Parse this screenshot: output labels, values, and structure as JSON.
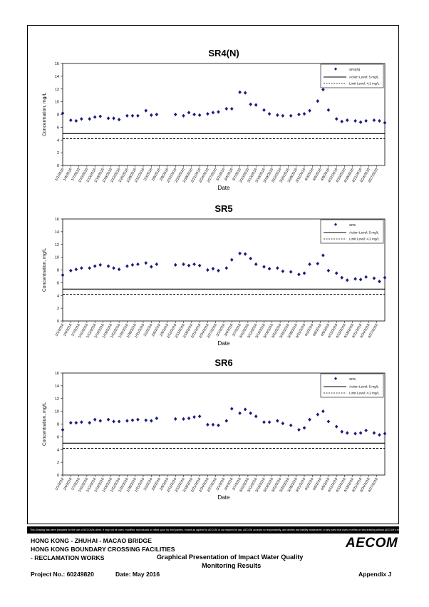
{
  "colors": {
    "marker": "#1a1a80",
    "line": "#000000"
  },
  "chart_data": [
    {
      "type": "scatter",
      "title": "SR4(N)",
      "xlabel": "Date",
      "ylabel": "Concentration, mg/L",
      "ylim": [
        0,
        16
      ],
      "yticks": [
        "0",
        "2",
        "4",
        "6",
        "8",
        "10",
        "12",
        "14",
        "16"
      ],
      "xticks": [
        "1/1/2016",
        "1/4/2016",
        "1/7/2016",
        "1/10/2016",
        "1/13/2016",
        "1/16/2016",
        "1/19/2016",
        "1/22/2016",
        "1/25/2016",
        "1/28/2016",
        "1/31/2016",
        "2/3/2016",
        "2/6/2016",
        "2/9/2016",
        "2/12/2016",
        "2/15/2016",
        "2/18/2016",
        "2/21/2016",
        "2/24/2016",
        "2/27/2016",
        "3/1/2016",
        "3/4/2016",
        "3/7/2016",
        "3/10/2016",
        "3/13/2016",
        "3/16/2016",
        "3/19/2016",
        "3/22/2016",
        "3/25/2016",
        "3/28/2016",
        "3/31/2016",
        "4/3/2016",
        "4/6/2016",
        "4/9/2016",
        "4/12/2016",
        "4/15/2016",
        "4/18/2016",
        "4/21/2016",
        "4/24/2016",
        "4/27/2016"
      ],
      "legend": {
        "position": "top-right",
        "marker_label": "SR4(N)",
        "action_label": "Action Level: 5 mg/L",
        "limit_label": "Limit Level: 4.2 mg/L"
      },
      "action_level": 5,
      "limit_level": 4.2,
      "series": [
        {
          "name": "SR4(N)",
          "x": [
            "2016-01-01",
            "2016-01-04",
            "2016-01-06",
            "2016-01-08",
            "2016-01-11",
            "2016-01-13",
            "2016-01-15",
            "2016-01-18",
            "2016-01-20",
            "2016-01-22",
            "2016-01-25",
            "2016-01-27",
            "2016-01-29",
            "2016-02-01",
            "2016-02-03",
            "2016-02-05",
            "2016-02-12",
            "2016-02-15",
            "2016-02-17",
            "2016-02-19",
            "2016-02-21",
            "2016-02-24",
            "2016-02-26",
            "2016-02-28",
            "2016-03-02",
            "2016-03-04",
            "2016-03-07",
            "2016-03-09",
            "2016-03-11",
            "2016-03-13",
            "2016-03-16",
            "2016-03-18",
            "2016-03-21",
            "2016-03-23",
            "2016-03-26",
            "2016-03-29",
            "2016-03-31",
            "2016-04-02",
            "2016-04-05",
            "2016-04-07",
            "2016-04-09",
            "2016-04-12",
            "2016-04-14",
            "2016-04-16",
            "2016-04-19",
            "2016-04-21",
            "2016-04-23",
            "2016-04-26",
            "2016-04-28",
            "2016-04-30"
          ],
          "y": [
            8.2,
            7.1,
            7.0,
            7.3,
            7.3,
            7.6,
            7.7,
            7.4,
            7.4,
            7.2,
            7.8,
            7.8,
            7.8,
            8.6,
            7.9,
            8.0,
            8.0,
            7.8,
            8.3,
            8.0,
            7.9,
            8.1,
            8.3,
            8.4,
            8.9,
            8.9,
            11.5,
            11.4,
            9.6,
            9.5,
            8.7,
            8.1,
            7.9,
            7.8,
            7.8,
            8.0,
            8.1,
            8.6,
            10.1,
            11.9,
            8.7,
            7.3,
            6.9,
            7.1,
            7.0,
            6.8,
            7.0,
            7.1,
            7.0,
            6.7
          ]
        }
      ]
    },
    {
      "type": "scatter",
      "title": "SR5",
      "xlabel": "Date",
      "ylabel": "Concentration, mg/L",
      "ylim": [
        0,
        16
      ],
      "yticks": [
        "0",
        "2",
        "4",
        "6",
        "8",
        "10",
        "12",
        "14",
        "16"
      ],
      "xticks": [
        "1/1/2016",
        "1/4/2016",
        "1/7/2016",
        "1/10/2016",
        "1/13/2016",
        "1/16/2016",
        "1/19/2016",
        "1/22/2016",
        "1/25/2016",
        "1/28/2016",
        "1/31/2016",
        "2/3/2016",
        "2/6/2016",
        "2/9/2016",
        "2/12/2016",
        "2/15/2016",
        "2/18/2016",
        "2/21/2016",
        "2/24/2016",
        "2/27/2016",
        "3/1/2016",
        "3/4/2016",
        "3/7/2016",
        "3/10/2016",
        "3/13/2016",
        "3/16/2016",
        "3/19/2016",
        "3/22/2016",
        "3/25/2016",
        "3/28/2016",
        "3/31/2016",
        "4/3/2016",
        "4/6/2016",
        "4/9/2016",
        "4/12/2016",
        "4/15/2016",
        "4/18/2016",
        "4/21/2016",
        "4/24/2016",
        "4/27/2016"
      ],
      "legend": {
        "position": "top-right",
        "marker_label": "SR5",
        "action_label": "Action Level: 5 mg/L",
        "limit_label": "Limit Level: 4.2 mg/L"
      },
      "action_level": 5,
      "limit_level": 4.2,
      "series": [
        {
          "name": "SR5",
          "x": [
            "2016-01-01",
            "2016-01-04",
            "2016-01-06",
            "2016-01-08",
            "2016-01-11",
            "2016-01-13",
            "2016-01-15",
            "2016-01-18",
            "2016-01-20",
            "2016-01-22",
            "2016-01-25",
            "2016-01-27",
            "2016-01-29",
            "2016-02-01",
            "2016-02-03",
            "2016-02-05",
            "2016-02-12",
            "2016-02-15",
            "2016-02-17",
            "2016-02-19",
            "2016-02-21",
            "2016-02-24",
            "2016-02-26",
            "2016-02-28",
            "2016-03-02",
            "2016-03-04",
            "2016-03-07",
            "2016-03-09",
            "2016-03-11",
            "2016-03-13",
            "2016-03-16",
            "2016-03-18",
            "2016-03-21",
            "2016-03-23",
            "2016-03-26",
            "2016-03-29",
            "2016-03-31",
            "2016-04-02",
            "2016-04-05",
            "2016-04-07",
            "2016-04-09",
            "2016-04-12",
            "2016-04-14",
            "2016-04-16",
            "2016-04-19",
            "2016-04-21",
            "2016-04-23",
            "2016-04-26",
            "2016-04-28",
            "2016-04-30"
          ],
          "y": [
            7.2,
            7.9,
            8.1,
            8.3,
            8.3,
            8.6,
            8.8,
            8.6,
            8.3,
            8.1,
            8.6,
            8.8,
            8.9,
            9.1,
            8.5,
            8.9,
            8.8,
            8.9,
            8.7,
            8.9,
            8.7,
            8.0,
            8.2,
            7.9,
            8.3,
            9.6,
            10.6,
            10.5,
            9.8,
            8.9,
            8.5,
            8.2,
            8.3,
            7.8,
            7.7,
            7.3,
            7.5,
            8.9,
            9.0,
            10.3,
            7.9,
            7.5,
            6.8,
            6.4,
            6.6,
            6.5,
            6.9,
            6.7,
            6.2,
            6.8
          ]
        }
      ]
    },
    {
      "type": "scatter",
      "title": "SR6",
      "xlabel": "Date",
      "ylabel": "Concentration, mg/L",
      "ylim": [
        0,
        16
      ],
      "yticks": [
        "0",
        "2",
        "4",
        "6",
        "8",
        "10",
        "12",
        "14",
        "16"
      ],
      "xticks": [
        "1/1/2016",
        "1/4/2016",
        "1/7/2016",
        "1/10/2016",
        "1/13/2016",
        "1/16/2016",
        "1/19/2016",
        "1/22/2016",
        "1/25/2016",
        "1/28/2016",
        "1/31/2016",
        "2/3/2016",
        "2/6/2016",
        "2/9/2016",
        "2/12/2016",
        "2/15/2016",
        "2/18/2016",
        "2/21/2016",
        "2/24/2016",
        "2/27/2016",
        "3/1/2016",
        "3/4/2016",
        "3/7/2016",
        "3/10/2016",
        "3/13/2016",
        "3/16/2016",
        "3/19/2016",
        "3/22/2016",
        "3/25/2016",
        "3/28/2016",
        "3/31/2016",
        "4/3/2016",
        "4/6/2016",
        "4/9/2016",
        "4/12/2016",
        "4/15/2016",
        "4/18/2016",
        "4/21/2016",
        "4/24/2016",
        "4/27/2016"
      ],
      "legend": {
        "position": "top-right",
        "marker_label": "SR6",
        "action_label": "Action Level: 5 mg/L",
        "limit_label": "Limit Level: 4.2 mg/L"
      },
      "action_level": 5,
      "limit_level": 4.2,
      "series": [
        {
          "name": "SR6",
          "x": [
            "2016-01-01",
            "2016-01-04",
            "2016-01-06",
            "2016-01-08",
            "2016-01-11",
            "2016-01-13",
            "2016-01-15",
            "2016-01-18",
            "2016-01-20",
            "2016-01-22",
            "2016-01-25",
            "2016-01-27",
            "2016-01-29",
            "2016-02-01",
            "2016-02-03",
            "2016-02-05",
            "2016-02-12",
            "2016-02-15",
            "2016-02-17",
            "2016-02-19",
            "2016-02-21",
            "2016-02-24",
            "2016-02-26",
            "2016-02-28",
            "2016-03-02",
            "2016-03-04",
            "2016-03-07",
            "2016-03-09",
            "2016-03-11",
            "2016-03-13",
            "2016-03-16",
            "2016-03-18",
            "2016-03-21",
            "2016-03-23",
            "2016-03-26",
            "2016-03-29",
            "2016-03-31",
            "2016-04-02",
            "2016-04-05",
            "2016-04-07",
            "2016-04-09",
            "2016-04-12",
            "2016-04-14",
            "2016-04-16",
            "2016-04-19",
            "2016-04-21",
            "2016-04-23",
            "2016-04-26",
            "2016-04-28",
            "2016-04-30"
          ],
          "y": [
            7.1,
            8.2,
            8.2,
            8.3,
            8.2,
            8.7,
            8.5,
            8.7,
            8.4,
            8.4,
            8.5,
            8.6,
            8.7,
            8.6,
            8.5,
            8.9,
            8.8,
            8.8,
            8.9,
            9.1,
            9.2,
            7.9,
            7.9,
            7.8,
            8.5,
            10.4,
            9.7,
            10.3,
            9.7,
            9.2,
            8.3,
            8.3,
            8.5,
            8.1,
            7.8,
            7.1,
            7.4,
            8.7,
            9.5,
            10.0,
            8.4,
            7.6,
            6.8,
            6.6,
            6.5,
            6.6,
            7.0,
            6.6,
            6.3,
            6.5
          ]
        }
      ]
    }
  ],
  "footer": {
    "disclaimer": "This Drawing has been prepared for the use of AECOM's client. It may not be used, modified, reproduced or relied upon by third parties, except as agreed by AECOM or as required by law. AECOM accepts no responsibility, and denies any liability whatsoever, to any party that uses or relies on this drawing without AECOM's express written consent.",
    "project_line1": "HONG KONG - ZHUHAI - MACAO BRIDGE",
    "project_line2": "HONG KONG BOUNDARY CROSSING FACILITIES",
    "project_line3": "- RECLAMATION WORKS",
    "title_line1": "Graphical Presentation of Impact Water Quality",
    "title_line2": "Monitoring Results",
    "project_no": "Project No.: 60249820",
    "date": "Date: May 2016",
    "appendix": "Appendix J",
    "logo": "AECOM"
  }
}
